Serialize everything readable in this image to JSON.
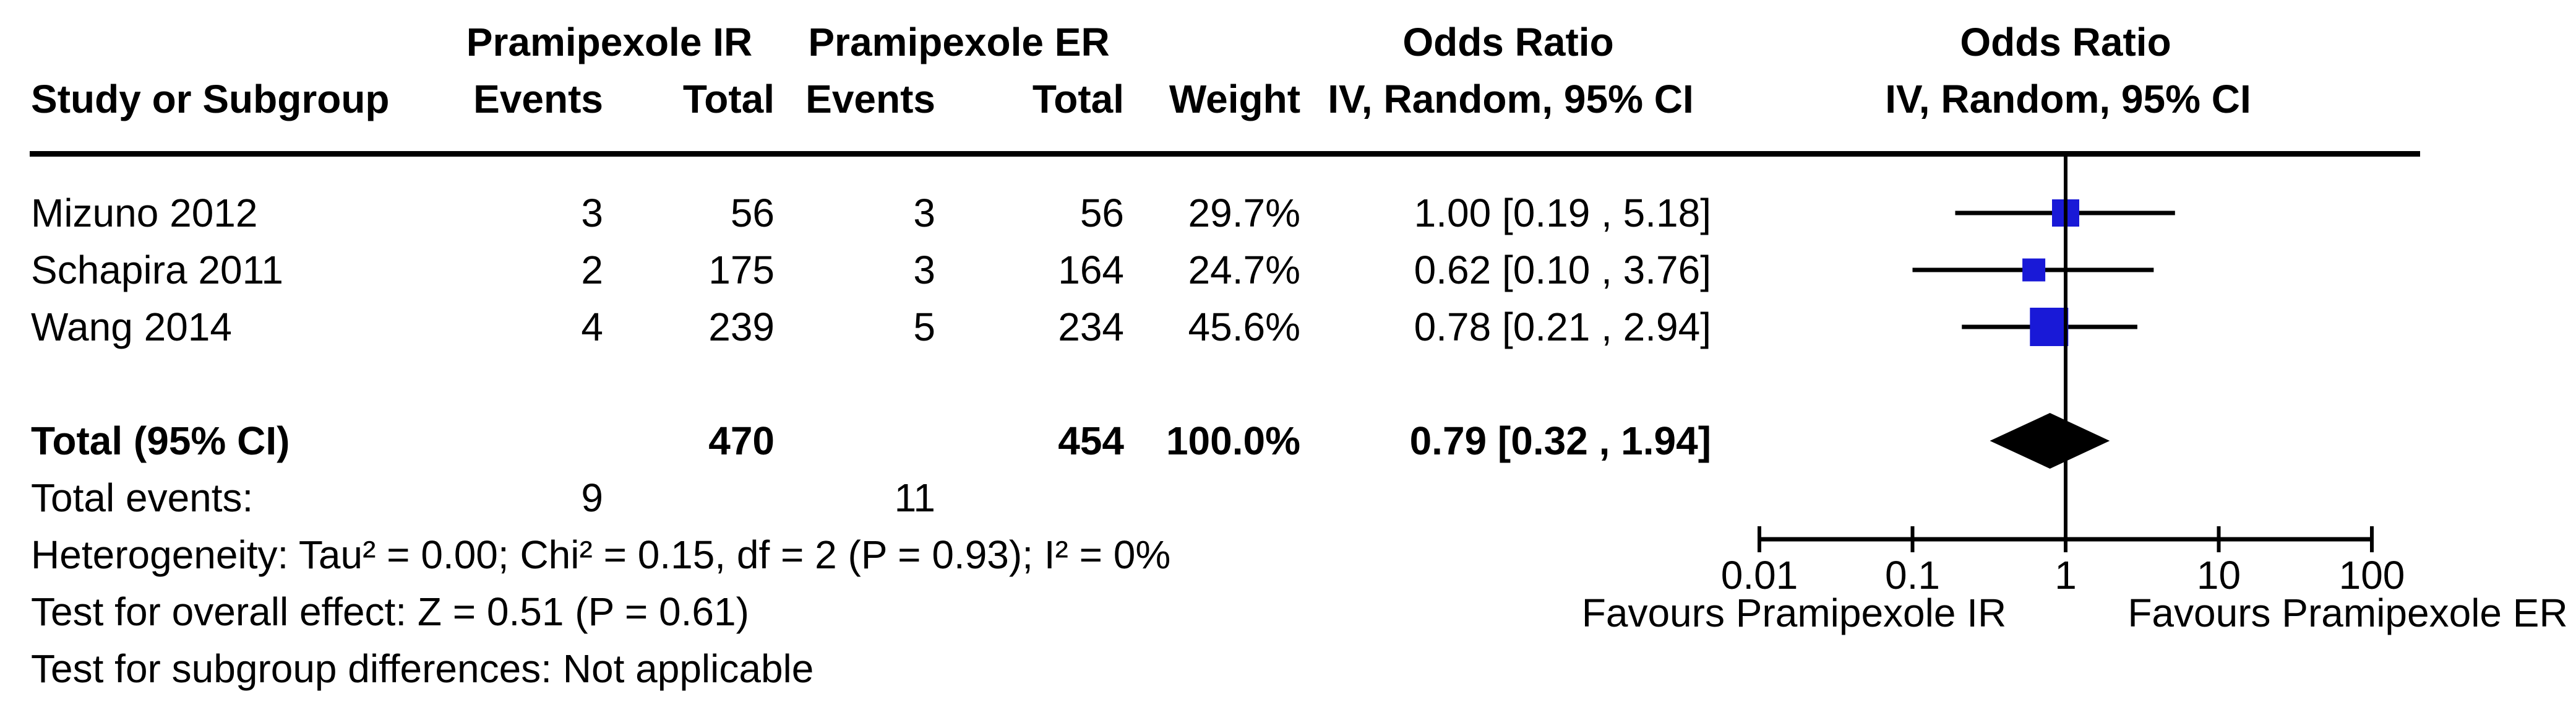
{
  "header": {
    "group_ir": "Pramipexole IR",
    "group_er": "Pramipexole ER",
    "or_col_title": "Odds Ratio",
    "or_col_sub": "IV, Random, 95% CI",
    "plot_title": "Odds Ratio",
    "plot_sub": "IV, Random, 95% CI",
    "study": "Study or Subgroup",
    "events": "Events",
    "total": "Total",
    "weight": "Weight"
  },
  "studies": [
    {
      "name": "Mizuno 2012",
      "ir_events": "3",
      "ir_total": "56",
      "er_events": "3",
      "er_total": "56",
      "weight": "29.7%",
      "or_text": "1.00 [0.19 , 5.18]",
      "or": 1.0,
      "ci_low": 0.19,
      "ci_high": 5.18,
      "weight_pct": 29.7
    },
    {
      "name": "Schapira 2011",
      "ir_events": "2",
      "ir_total": "175",
      "er_events": "3",
      "er_total": "164",
      "weight": "24.7%",
      "or_text": "0.62 [0.10 , 3.76]",
      "or": 0.62,
      "ci_low": 0.1,
      "ci_high": 3.76,
      "weight_pct": 24.7
    },
    {
      "name": "Wang 2014",
      "ir_events": "4",
      "ir_total": "239",
      "er_events": "5",
      "er_total": "234",
      "weight": "45.6%",
      "or_text": "0.78 [0.21 , 2.94]",
      "or": 0.78,
      "ci_low": 0.21,
      "ci_high": 2.94,
      "weight_pct": 45.6
    }
  ],
  "total": {
    "label": "Total (95% CI)",
    "ir_total": "470",
    "er_total": "454",
    "weight": "100.0%",
    "or_text": "0.79 [0.32 , 1.94]",
    "or": 0.79,
    "ci_low": 0.32,
    "ci_high": 1.94
  },
  "total_events": {
    "label": "Total events:",
    "ir": "9",
    "er": "11"
  },
  "footnotes": {
    "heterogeneity": "Heterogeneity: Tau² = 0.00; Chi² = 0.15, df = 2 (P = 0.93); I² = 0%",
    "overall_effect": "Test for overall effect: Z = 0.51 (P = 0.61)",
    "subgroup": "Test for subgroup differences: Not applicable"
  },
  "axis": {
    "tick_labels": [
      "0.01",
      "0.1",
      "1",
      "10",
      "100"
    ],
    "tick_values": [
      0.01,
      0.1,
      1,
      10,
      100
    ],
    "favours_left": "Favours Pramipexole IR",
    "favours_right": "Favours Pramipexole ER"
  },
  "colors": {
    "marker_blue": "#1919d7",
    "line_black": "#000000"
  },
  "chart_data": {
    "type": "scatter",
    "subtype": "forest_plot",
    "x_scale": "log10",
    "x_ticks": [
      0.01,
      0.1,
      1,
      10,
      100
    ],
    "x_range": [
      0.01,
      100
    ],
    "null_line": 1,
    "title": "Odds Ratio",
    "subtitle": "IV, Random, 95% CI",
    "series": [
      {
        "name": "Mizuno 2012",
        "or": 1.0,
        "ci": [
          0.19,
          5.18
        ],
        "weight_pct": 29.7
      },
      {
        "name": "Schapira 2011",
        "or": 0.62,
        "ci": [
          0.1,
          3.76
        ],
        "weight_pct": 24.7
      },
      {
        "name": "Wang 2014",
        "or": 0.78,
        "ci": [
          0.21,
          2.94
        ],
        "weight_pct": 45.6
      }
    ],
    "pooled": {
      "name": "Total (95% CI)",
      "or": 0.79,
      "ci": [
        0.32,
        1.94
      ],
      "weight_pct": 100.0,
      "marker": "diamond"
    },
    "xlabel_left": "Favours Pramipexole IR",
    "xlabel_right": "Favours Pramipexole ER",
    "legend": "none",
    "grid": "off"
  }
}
